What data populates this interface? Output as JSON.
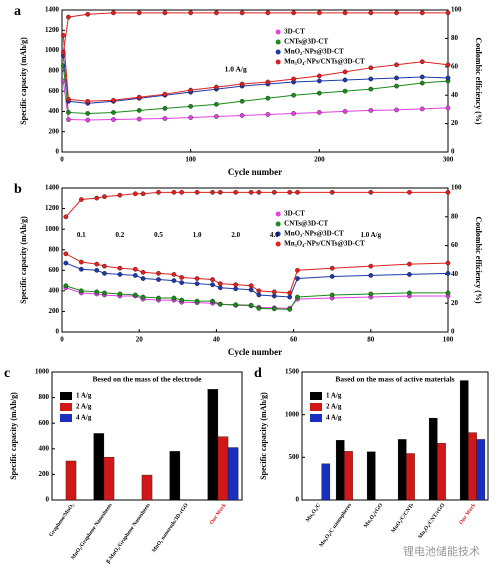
{
  "chart_data": [
    {
      "type": "line",
      "label": "a",
      "xlabel": "Cycle number",
      "ylabel": "Specific capacity (mAh/g)",
      "y2label": "Coulombic efficiency (%)",
      "annotation": "1.0 A/g",
      "x": [
        1,
        5,
        20,
        40,
        60,
        80,
        100,
        120,
        140,
        160,
        180,
        200,
        220,
        240,
        260,
        280,
        300
      ],
      "xlim": [
        0,
        300
      ],
      "xticks": [
        0,
        100,
        200,
        300
      ],
      "ylim": [
        0,
        1400
      ],
      "yticks": [
        0,
        200,
        400,
        600,
        800,
        1000,
        1200,
        1400
      ],
      "y2lim": [
        0,
        100
      ],
      "y2ticks": [
        0,
        20,
        40,
        60,
        80,
        100
      ],
      "series": [
        {
          "name": "3D-CT",
          "color": "#e040e0",
          "values": [
            700,
            320,
            315,
            320,
            325,
            330,
            340,
            350,
            360,
            370,
            380,
            390,
            400,
            410,
            415,
            425,
            435
          ]
        },
        {
          "name": "CNTs@3D-CT",
          "color": "#1a8a1a",
          "values": [
            850,
            390,
            380,
            390,
            410,
            430,
            450,
            470,
            500,
            530,
            560,
            580,
            600,
            620,
            650,
            680,
            700
          ]
        },
        {
          "name": "MnO₂-NPs@3D-CT",
          "color": "#1f3aa8",
          "values": [
            950,
            500,
            480,
            500,
            530,
            560,
            590,
            620,
            650,
            670,
            690,
            700,
            710,
            720,
            730,
            740,
            730
          ]
        },
        {
          "name": "Mn₃O₄-NPs/CNTs@3D-CT",
          "color": "#e02020",
          "values": [
            1150,
            520,
            500,
            510,
            540,
            570,
            610,
            640,
            670,
            690,
            720,
            750,
            790,
            830,
            860,
            890,
            860
          ]
        },
        {
          "color": "#e02020",
          "axis": "y2",
          "values": [
            70,
            95,
            97,
            98,
            98,
            98,
            98,
            98,
            98,
            98,
            98,
            98,
            98,
            98,
            98,
            98,
            98
          ]
        }
      ]
    },
    {
      "type": "line",
      "label": "b",
      "xlabel": "Cycle number",
      "ylabel": "Specific capacity (mAh/g)",
      "y2label": "Coulombic efficiency (%)",
      "rate_labels": [
        "0.1",
        "0.2",
        "0.5",
        "1.0",
        "2.0",
        "4.0",
        "1.0 A/g"
      ],
      "x": [
        1,
        5,
        9,
        11,
        15,
        19,
        21,
        25,
        29,
        31,
        35,
        39,
        41,
        45,
        49,
        51,
        55,
        59,
        61,
        70,
        80,
        90,
        100
      ],
      "xlim": [
        0,
        100
      ],
      "xticks": [
        0,
        20,
        40,
        60,
        80,
        100
      ],
      "ylim": [
        0,
        1400
      ],
      "yticks": [
        0,
        200,
        400,
        600,
        800,
        1000,
        1200,
        1400
      ],
      "y2lim": [
        0,
        100
      ],
      "y2ticks": [
        0,
        20,
        40,
        60,
        80,
        100
      ],
      "series": [
        {
          "name": "3D-CT",
          "color": "#e040e0",
          "values": [
            430,
            380,
            370,
            360,
            350,
            350,
            320,
            310,
            310,
            290,
            285,
            280,
            270,
            260,
            255,
            240,
            235,
            230,
            320,
            330,
            340,
            350,
            350
          ]
        },
        {
          "name": "CNTs@3D-CT",
          "color": "#1a8a1a",
          "values": [
            450,
            400,
            390,
            380,
            370,
            360,
            340,
            330,
            330,
            310,
            300,
            300,
            270,
            265,
            260,
            230,
            225,
            220,
            340,
            360,
            370,
            380,
            380
          ]
        },
        {
          "name": "MnO₂-NPs@3D-CT",
          "color": "#1f3aa8",
          "values": [
            670,
            610,
            600,
            570,
            560,
            550,
            520,
            510,
            500,
            480,
            470,
            460,
            430,
            420,
            410,
            360,
            350,
            340,
            520,
            540,
            550,
            560,
            570
          ]
        },
        {
          "name": "Mn₃O₄-NPs/CNTs@3D-CT",
          "color": "#e02020",
          "values": [
            760,
            680,
            660,
            640,
            620,
            610,
            580,
            570,
            560,
            530,
            520,
            510,
            470,
            460,
            450,
            400,
            390,
            380,
            600,
            620,
            640,
            660,
            670
          ]
        },
        {
          "color": "#e02020",
          "axis": "y2",
          "values": [
            80,
            92,
            93,
            94,
            95,
            96,
            96,
            97,
            97,
            97,
            97,
            97,
            97,
            97,
            97,
            97,
            97,
            97,
            97,
            97,
            97,
            97,
            97
          ]
        }
      ]
    },
    {
      "type": "bar",
      "label": "c",
      "title": "Besed on the mass of the electrode",
      "ylabel": "Specific capacity (mAh/g)",
      "categories": [
        "Graphene/MnO₂",
        "MnO₂/Graphene Nanosheets",
        "β-MnO₂/Graphene Nanosheets",
        "MnO₂ nanorods/3D-rGO",
        "Our Work"
      ],
      "ylim": [
        0,
        1000
      ],
      "yticks": [
        0,
        200,
        400,
        600,
        800,
        1000
      ],
      "series": [
        {
          "name": "1 A/g",
          "color": "#000000",
          "values": [
            null,
            520,
            null,
            380,
            865
          ]
        },
        {
          "name": "2 A/g",
          "color": "#d01818",
          "values": [
            305,
            335,
            195,
            null,
            495
          ]
        },
        {
          "name": "4 A/g",
          "color": "#1a2fc0",
          "values": [
            null,
            null,
            null,
            null,
            410
          ]
        }
      ]
    },
    {
      "type": "bar",
      "label": "d",
      "title": "Based on the mass of active materials",
      "ylabel": "Specific capacity (mAh/g)",
      "categories": [
        "Mn₃O₄/C",
        "Mn₃O₄/C nanospheres",
        "Mn₃O₄/rGO",
        "MnO₂/C/CNTs",
        "Mn₃O₄/CNT/rGO",
        "Our Work"
      ],
      "ylim": [
        0,
        1500
      ],
      "yticks": [
        0,
        500,
        1000,
        1500
      ],
      "series": [
        {
          "name": "1 A/g",
          "color": "#000000",
          "values": [
            null,
            700,
            565,
            710,
            960,
            1400
          ]
        },
        {
          "name": "2 A/g",
          "color": "#d01818",
          "values": [
            null,
            570,
            null,
            545,
            665,
            790
          ]
        },
        {
          "name": "4 A/g",
          "color": "#1a2fc0",
          "values": [
            425,
            null,
            null,
            null,
            null,
            710
          ]
        }
      ]
    }
  ],
  "watermark": "锂电池储能技术"
}
